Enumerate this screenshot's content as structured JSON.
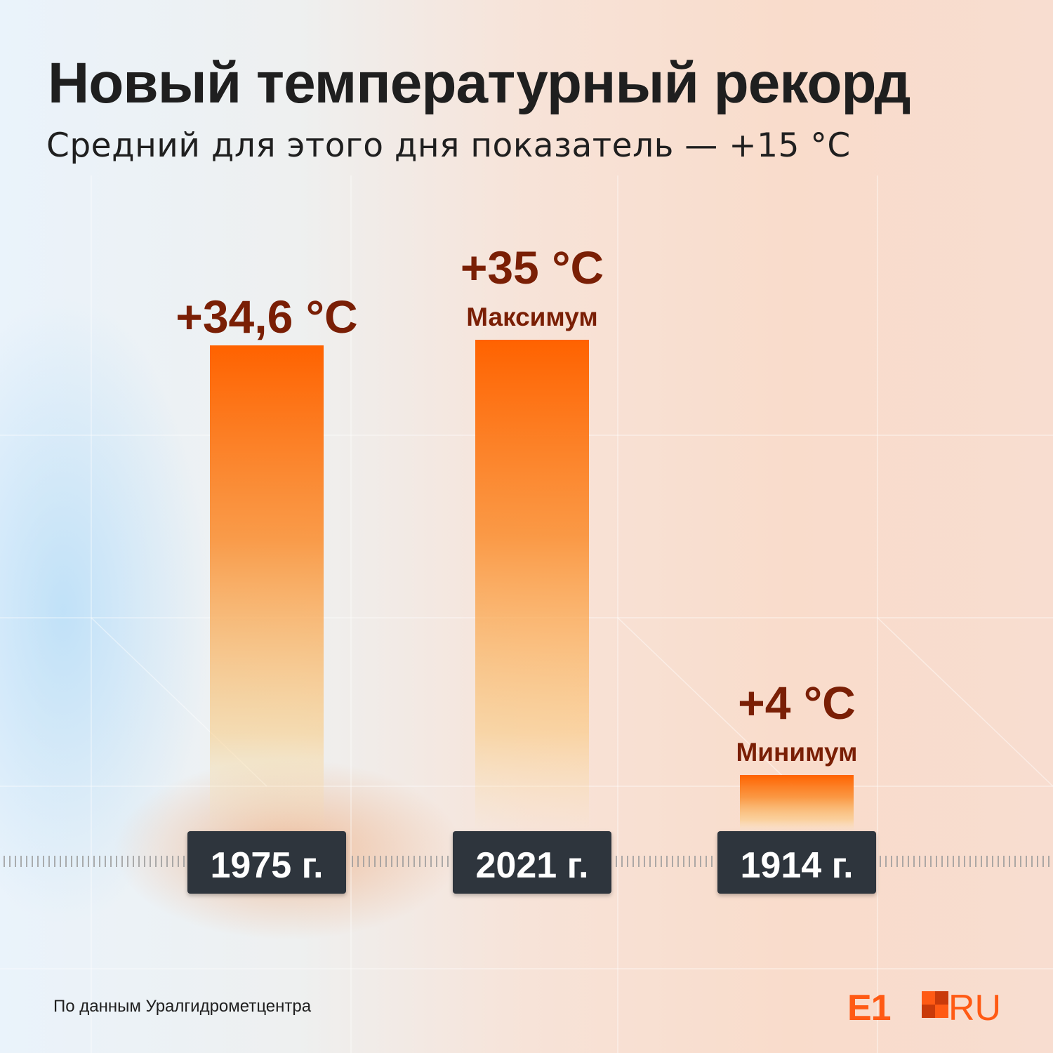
{
  "title": "Новый температурный рекорд",
  "subtitle": "Средний для этого дня показатель — +15 °C",
  "source": "По данным Уралгидрометцентра",
  "logo": {
    "left": "E1",
    "right": "RU"
  },
  "colors": {
    "bar_top": "#ff6a00",
    "value_text": "#7a1f05",
    "year_box": "#2e343e",
    "year_text": "#ffffff",
    "logo": "#ff5a14"
  },
  "chart_data": {
    "type": "bar",
    "categories": [
      "1975 г.",
      "2021 г.",
      "1914 г."
    ],
    "values": [
      34.6,
      35,
      4
    ],
    "value_labels": [
      "+34,6 °C",
      "+35 °C",
      "+4 °C"
    ],
    "annotations": [
      "",
      "Максимум",
      "Минимум"
    ],
    "ylim": [
      0,
      35
    ],
    "grid": false,
    "unit": "°C"
  }
}
